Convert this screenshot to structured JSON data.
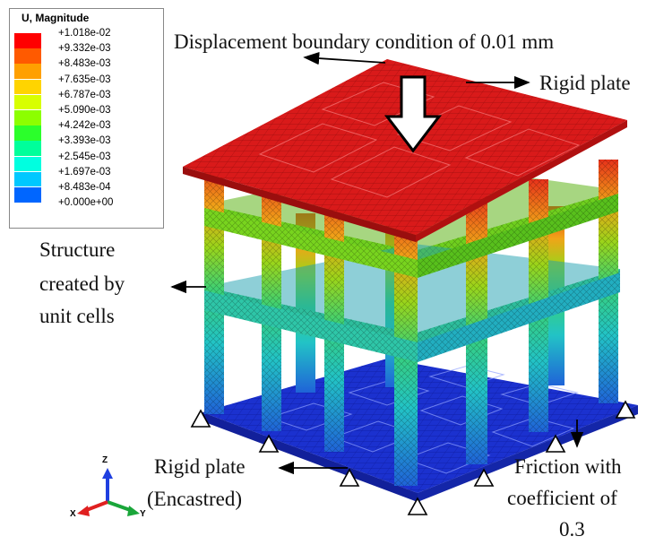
{
  "legend": {
    "title": "U, Magnitude",
    "entries": [
      {
        "label": "+1.018e-02",
        "color": "#ff0000"
      },
      {
        "label": "+9.332e-03",
        "color": "#ff5a00"
      },
      {
        "label": "+8.483e-03",
        "color": "#ffa000"
      },
      {
        "label": "+7.635e-03",
        "color": "#ffd400"
      },
      {
        "label": "+6.787e-03",
        "color": "#d8ff00"
      },
      {
        "label": "+5.090e-03",
        "color": "#8cff00"
      },
      {
        "label": "+4.242e-03",
        "color": "#2bff2b"
      },
      {
        "label": "+3.393e-03",
        "color": "#00ff9a"
      },
      {
        "label": "+2.545e-03",
        "color": "#00ffe0"
      },
      {
        "label": "+1.697e-03",
        "color": "#00c8ff"
      },
      {
        "label": "+8.483e-04",
        "color": "#0066ff"
      },
      {
        "label": "+0.000e+00",
        "color": "#0000ff"
      }
    ]
  },
  "annotations": {
    "top_condition": "Displacement boundary condition of 0.01 mm",
    "rigid_plate_top": "Rigid plate",
    "structure_line1": "Structure",
    "structure_line2": "created by",
    "structure_line3": "unit cells",
    "rigid_plate_bottom_line1": "Rigid plate",
    "rigid_plate_bottom_line2": "(Encastred)",
    "friction_line1": "Friction with",
    "friction_line2": "coefficient of",
    "friction_line3": "0.3"
  },
  "triad": {
    "z": "Z",
    "x": "X",
    "y": "Y"
  },
  "colors": {
    "top_plate": "#d81818",
    "bottom_plate": "#1a2fd0",
    "upper_structure": "#e23a1c",
    "mid_structure": "#8ed21c",
    "lower_structure": "#20b7c8"
  }
}
